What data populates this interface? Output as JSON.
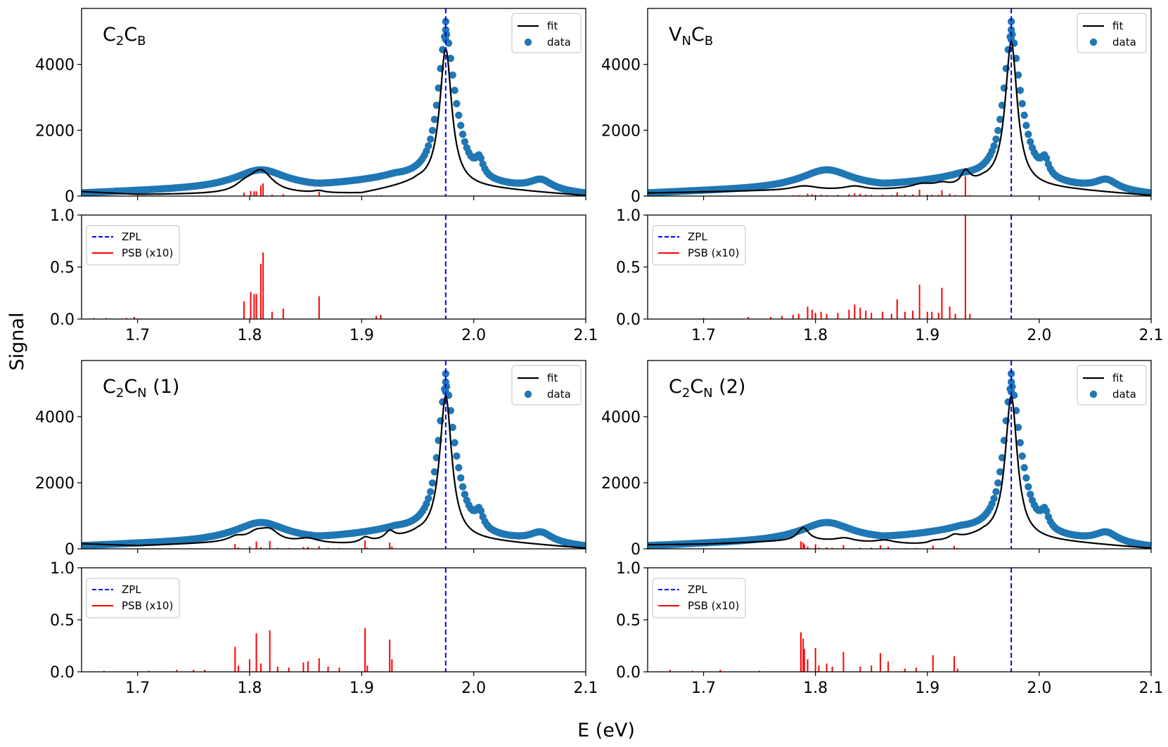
{
  "figure": {
    "ylabel": "Signal",
    "xlabel": "E (eV)"
  },
  "chart_data": [
    {
      "type": "scatter",
      "panel": "top-left",
      "title": {
        "main1": "C",
        "sub1": "2",
        "main2": "C",
        "sub2": "B",
        "suffix": ""
      },
      "xlim": [
        1.65,
        2.1
      ],
      "ylim": [
        0,
        5700
      ],
      "yticks": [
        0,
        2000,
        4000
      ],
      "ytick_labels": [
        "0",
        "2000",
        "4000"
      ],
      "legend": {
        "position": "upper right",
        "fit": "fit",
        "data": "data"
      },
      "colors": {
        "fit": "#000000",
        "data": "#1f77b4"
      },
      "zpl": 1.975,
      "series": [
        {
          "name": "fit",
          "kind": "line",
          "peaks": [
            [
              1.975,
              4150,
              0.0065
            ],
            [
              1.81,
              690,
              0.013
            ],
            [
              1.795,
              180,
              0.01
            ],
            [
              1.862,
              60,
              0.006
            ]
          ],
          "base": [
            [
              1.65,
              130
            ],
            [
              1.7,
              40
            ],
            [
              1.9,
              60
            ],
            [
              1.95,
              380
            ],
            [
              2.1,
              5
            ]
          ]
        },
        {
          "name": "data",
          "kind": "scatter",
          "peaks": [
            [
              1.975,
              4200,
              0.0085
            ],
            [
              1.81,
              560,
              0.028
            ],
            [
              1.985,
              600,
              0.01
            ],
            [
              2.005,
              480,
              0.004
            ],
            [
              2.06,
              300,
              0.012
            ]
          ],
          "base": [
            [
              1.65,
              80
            ],
            [
              1.7,
              140
            ],
            [
              1.78,
              220
            ],
            [
              1.86,
              230
            ],
            [
              1.93,
              520
            ],
            [
              2.1,
              40
            ]
          ],
          "tip": [
            4750,
            5050,
            5300
          ]
        }
      ]
    },
    {
      "type": "bar",
      "panel": "top-left-psb",
      "xlim": [
        1.65,
        2.1
      ],
      "ylim": [
        0,
        1.0
      ],
      "yticks": [
        0.0,
        0.5,
        1.0
      ],
      "ytick_labels": [
        "0.0",
        "0.5",
        "1.0"
      ],
      "xticks": [
        1.7,
        1.8,
        1.9,
        2.0,
        2.1
      ],
      "xtick_labels": [
        "1.7",
        "1.8",
        "1.9",
        "2.0",
        "2.1"
      ],
      "legend": {
        "position": "upper left",
        "zpl": "ZPL",
        "psb": "PSB (x10)"
      },
      "colors": {
        "zpl": "#0000ff",
        "psb": "#ff0000"
      },
      "zpl": 1.975,
      "psb_sticks": [
        [
          1.661,
          0.01
        ],
        [
          1.672,
          0.01
        ],
        [
          1.69,
          0.01
        ],
        [
          1.697,
          0.02
        ],
        [
          1.795,
          0.17
        ],
        [
          1.801,
          0.26
        ],
        [
          1.804,
          0.24
        ],
        [
          1.806,
          0.24
        ],
        [
          1.81,
          0.53
        ],
        [
          1.812,
          0.64
        ],
        [
          1.82,
          0.07
        ],
        [
          1.83,
          0.1
        ],
        [
          1.862,
          0.22
        ],
        [
          1.913,
          0.03
        ],
        [
          1.917,
          0.04
        ]
      ]
    },
    {
      "type": "scatter",
      "panel": "top-right",
      "title": {
        "main1": "V",
        "sub1": "N",
        "main2": "C",
        "sub2": "B",
        "suffix": ""
      },
      "xlim": [
        1.65,
        2.1
      ],
      "ylim": [
        0,
        5700
      ],
      "yticks": [
        0,
        2000,
        4000
      ],
      "ytick_labels": [
        "0",
        "2000",
        "4000"
      ],
      "legend": {
        "position": "upper right",
        "fit": "fit",
        "data": "data"
      },
      "colors": {
        "fit": "#000000",
        "data": "#1f77b4"
      },
      "zpl": 1.975,
      "series": [
        {
          "name": "fit",
          "kind": "line",
          "peaks": [
            [
              1.975,
              4350,
              0.0065
            ],
            [
              1.934,
              420,
              0.005
            ],
            [
              1.79,
              140,
              0.015
            ],
            [
              1.835,
              120,
              0.012
            ],
            [
              1.895,
              130,
              0.012
            ],
            [
              1.913,
              110,
              0.008
            ]
          ],
          "base": [
            [
              1.65,
              90
            ],
            [
              1.75,
              150
            ],
            [
              1.85,
              160
            ],
            [
              1.93,
              230
            ],
            [
              1.95,
              380
            ],
            [
              2.1,
              10
            ]
          ]
        },
        {
          "name": "data",
          "kind": "scatter",
          "peaks": [
            [
              1.975,
              4200,
              0.0085
            ],
            [
              1.81,
              560,
              0.028
            ],
            [
              1.985,
              600,
              0.01
            ],
            [
              2.005,
              480,
              0.004
            ],
            [
              2.06,
              300,
              0.012
            ]
          ],
          "base": [
            [
              1.65,
              80
            ],
            [
              1.7,
              140
            ],
            [
              1.78,
              220
            ],
            [
              1.86,
              230
            ],
            [
              1.93,
              520
            ],
            [
              2.1,
              40
            ]
          ],
          "tip": [
            4750,
            5050,
            5300
          ]
        }
      ]
    },
    {
      "type": "bar",
      "panel": "top-right-psb",
      "xlim": [
        1.65,
        2.1
      ],
      "ylim": [
        0,
        1.0
      ],
      "yticks": [
        0.0,
        0.5,
        1.0
      ],
      "ytick_labels": [
        "0.0",
        "0.5",
        "1.0"
      ],
      "xticks": [
        1.7,
        1.8,
        1.9,
        2.0,
        2.1
      ],
      "xtick_labels": [
        "1.7",
        "1.8",
        "1.9",
        "2.0",
        "2.1"
      ],
      "legend": {
        "position": "upper left",
        "zpl": "ZPL",
        "psb": "PSB (x10)"
      },
      "colors": {
        "zpl": "#0000ff",
        "psb": "#ff0000"
      },
      "zpl": 1.975,
      "psb_sticks": [
        [
          1.7,
          0.01
        ],
        [
          1.74,
          0.02
        ],
        [
          1.76,
          0.02
        ],
        [
          1.77,
          0.03
        ],
        [
          1.78,
          0.04
        ],
        [
          1.785,
          0.05
        ],
        [
          1.793,
          0.12
        ],
        [
          1.797,
          0.09
        ],
        [
          1.8,
          0.06
        ],
        [
          1.805,
          0.07
        ],
        [
          1.81,
          0.05
        ],
        [
          1.82,
          0.06
        ],
        [
          1.83,
          0.09
        ],
        [
          1.835,
          0.14
        ],
        [
          1.84,
          0.11
        ],
        [
          1.845,
          0.08
        ],
        [
          1.85,
          0.06
        ],
        [
          1.86,
          0.07
        ],
        [
          1.868,
          0.05
        ],
        [
          1.873,
          0.19
        ],
        [
          1.88,
          0.07
        ],
        [
          1.887,
          0.08
        ],
        [
          1.893,
          0.33
        ],
        [
          1.9,
          0.07
        ],
        [
          1.904,
          0.07
        ],
        [
          1.91,
          0.06
        ],
        [
          1.913,
          0.3
        ],
        [
          1.92,
          0.12
        ],
        [
          1.925,
          0.05
        ],
        [
          1.934,
          1.0
        ],
        [
          1.938,
          0.05
        ]
      ]
    },
    {
      "type": "scatter",
      "panel": "bottom-left",
      "title": {
        "main1": "C",
        "sub1": "2",
        "main2": "C",
        "sub2": "N",
        "suffix": " (1)"
      },
      "xlim": [
        1.65,
        2.1
      ],
      "ylim": [
        0,
        5700
      ],
      "yticks": [
        0,
        2000,
        4000
      ],
      "ytick_labels": [
        "0",
        "2000",
        "4000"
      ],
      "legend": {
        "position": "upper right",
        "fit": "fit",
        "data": "data"
      },
      "colors": {
        "fit": "#000000",
        "data": "#1f77b4"
      },
      "zpl": 1.975,
      "series": [
        {
          "name": "fit",
          "kind": "line",
          "peaks": [
            [
              1.975,
              4300,
              0.0065
            ],
            [
              1.788,
              140,
              0.008
            ],
            [
              1.806,
              260,
              0.01
            ],
            [
              1.818,
              330,
              0.01
            ],
            [
              1.852,
              140,
              0.012
            ],
            [
              1.903,
              180,
              0.006
            ],
            [
              1.925,
              230,
              0.005
            ]
          ],
          "base": [
            [
              1.65,
              150
            ],
            [
              1.7,
              90
            ],
            [
              1.78,
              180
            ],
            [
              1.9,
              110
            ],
            [
              1.95,
              380
            ],
            [
              2.1,
              10
            ]
          ]
        },
        {
          "name": "data",
          "kind": "scatter",
          "peaks": [
            [
              1.975,
              4200,
              0.0085
            ],
            [
              1.81,
              560,
              0.028
            ],
            [
              1.985,
              600,
              0.01
            ],
            [
              2.005,
              480,
              0.004
            ],
            [
              2.06,
              300,
              0.012
            ]
          ],
          "base": [
            [
              1.65,
              80
            ],
            [
              1.7,
              140
            ],
            [
              1.78,
              220
            ],
            [
              1.86,
              230
            ],
            [
              1.93,
              520
            ],
            [
              2.1,
              40
            ]
          ],
          "tip": [
            4750,
            5050,
            5300
          ]
        }
      ]
    },
    {
      "type": "bar",
      "panel": "bottom-left-psb",
      "xlim": [
        1.65,
        2.1
      ],
      "ylim": [
        0,
        1.0
      ],
      "yticks": [
        0.0,
        0.5,
        1.0
      ],
      "ytick_labels": [
        "0.0",
        "0.5",
        "1.0"
      ],
      "xticks": [
        1.7,
        1.8,
        1.9,
        2.0,
        2.1
      ],
      "xtick_labels": [
        "1.7",
        "1.8",
        "1.9",
        "2.0",
        "2.1"
      ],
      "legend": {
        "position": "upper left",
        "zpl": "ZPL",
        "psb": "PSB (x10)"
      },
      "colors": {
        "zpl": "#0000ff",
        "psb": "#ff0000"
      },
      "zpl": 1.975,
      "psb_sticks": [
        [
          1.67,
          0.01
        ],
        [
          1.71,
          0.01
        ],
        [
          1.735,
          0.02
        ],
        [
          1.75,
          0.02
        ],
        [
          1.76,
          0.02
        ],
        [
          1.787,
          0.24
        ],
        [
          1.79,
          0.06
        ],
        [
          1.8,
          0.12
        ],
        [
          1.806,
          0.37
        ],
        [
          1.81,
          0.08
        ],
        [
          1.818,
          0.4
        ],
        [
          1.825,
          0.05
        ],
        [
          1.835,
          0.04
        ],
        [
          1.848,
          0.09
        ],
        [
          1.852,
          0.1
        ],
        [
          1.862,
          0.13
        ],
        [
          1.87,
          0.05
        ],
        [
          1.88,
          0.04
        ],
        [
          1.903,
          0.42
        ],
        [
          1.905,
          0.06
        ],
        [
          1.925,
          0.31
        ],
        [
          1.927,
          0.12
        ]
      ]
    },
    {
      "type": "scatter",
      "panel": "bottom-right",
      "title": {
        "main1": "C",
        "sub1": "2",
        "main2": "C",
        "sub2": "N",
        "suffix": " (2)"
      },
      "xlim": [
        1.65,
        2.1
      ],
      "ylim": [
        0,
        5700
      ],
      "yticks": [
        0,
        2000,
        4000
      ],
      "ytick_labels": [
        "0",
        "2000",
        "4000"
      ],
      "legend": {
        "position": "upper right",
        "fit": "fit",
        "data": "data"
      },
      "colors": {
        "fit": "#000000",
        "data": "#1f77b4"
      },
      "zpl": 1.975,
      "series": [
        {
          "name": "fit",
          "kind": "line",
          "peaks": [
            [
              1.975,
              4300,
              0.0065
            ],
            [
              1.789,
              380,
              0.006
            ],
            [
              1.826,
              110,
              0.01
            ],
            [
              1.862,
              90,
              0.01
            ],
            [
              1.905,
              80,
              0.008
            ],
            [
              1.924,
              130,
              0.006
            ]
          ],
          "base": [
            [
              1.65,
              120
            ],
            [
              1.7,
              140
            ],
            [
              1.79,
              250
            ],
            [
              1.9,
              100
            ],
            [
              1.95,
              380
            ],
            [
              2.1,
              10
            ]
          ]
        },
        {
          "name": "data",
          "kind": "scatter",
          "peaks": [
            [
              1.975,
              4200,
              0.0085
            ],
            [
              1.81,
              560,
              0.028
            ],
            [
              1.985,
              600,
              0.01
            ],
            [
              2.005,
              480,
              0.004
            ],
            [
              2.06,
              300,
              0.012
            ]
          ],
          "base": [
            [
              1.65,
              80
            ],
            [
              1.7,
              140
            ],
            [
              1.78,
              220
            ],
            [
              1.86,
              230
            ],
            [
              1.93,
              520
            ],
            [
              2.1,
              40
            ]
          ],
          "tip": [
            4750,
            5050,
            5300
          ]
        }
      ]
    },
    {
      "type": "bar",
      "panel": "bottom-right-psb",
      "xlim": [
        1.65,
        2.1
      ],
      "ylim": [
        0,
        1.0
      ],
      "yticks": [
        0.0,
        0.5,
        1.0
      ],
      "ytick_labels": [
        "0.0",
        "0.5",
        "1.0"
      ],
      "xticks": [
        1.7,
        1.8,
        1.9,
        2.0,
        2.1
      ],
      "xtick_labels": [
        "1.7",
        "1.8",
        "1.9",
        "2.0",
        "2.1"
      ],
      "legend": {
        "position": "upper left",
        "zpl": "ZPL",
        "psb": "PSB (x10)"
      },
      "colors": {
        "zpl": "#0000ff",
        "psb": "#ff0000"
      },
      "zpl": 1.975,
      "psb_sticks": [
        [
          1.67,
          0.02
        ],
        [
          1.69,
          0.01
        ],
        [
          1.715,
          0.02
        ],
        [
          1.75,
          0.01
        ],
        [
          1.787,
          0.38
        ],
        [
          1.789,
          0.32
        ],
        [
          1.79,
          0.22
        ],
        [
          1.793,
          0.12
        ],
        [
          1.8,
          0.23
        ],
        [
          1.803,
          0.06
        ],
        [
          1.81,
          0.08
        ],
        [
          1.815,
          0.05
        ],
        [
          1.825,
          0.19
        ],
        [
          1.84,
          0.05
        ],
        [
          1.85,
          0.06
        ],
        [
          1.858,
          0.18
        ],
        [
          1.865,
          0.1
        ],
        [
          1.88,
          0.03
        ],
        [
          1.89,
          0.04
        ],
        [
          1.905,
          0.16
        ],
        [
          1.924,
          0.15
        ],
        [
          1.927,
          0.03
        ]
      ]
    }
  ]
}
